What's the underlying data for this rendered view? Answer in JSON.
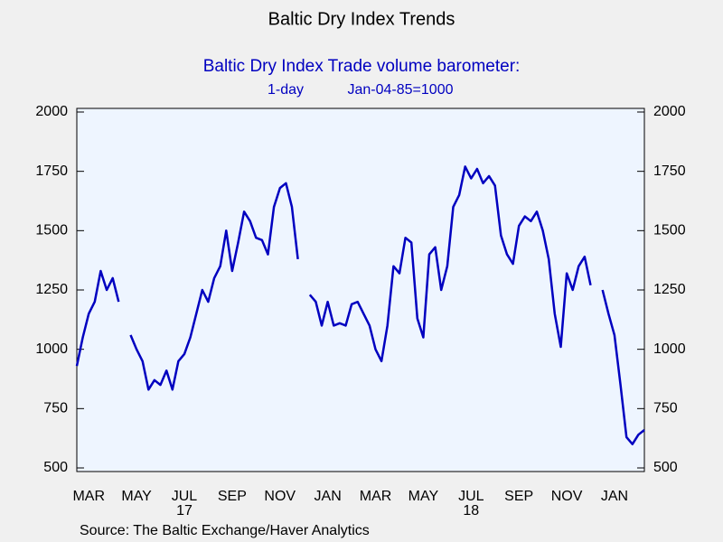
{
  "chart_data": {
    "type": "line",
    "title": "Baltic Dry Index Trends",
    "subtitle": "Baltic Dry Index Trade volume barometer:",
    "series_label": "1-day",
    "base_note": "Jan-04-85=1000",
    "source": "Source:  The Baltic Exchange/Haver Analytics",
    "categories": [
      null,
      null,
      "MAR",
      null,
      null,
      null,
      null,
      null,
      null,
      null,
      "MAY",
      null,
      null,
      null,
      null,
      null,
      null,
      null,
      "JUL",
      null,
      null,
      null,
      null,
      null,
      null,
      null,
      "SEP",
      null,
      null,
      null,
      null,
      null,
      null,
      null,
      "NOV",
      null,
      null,
      null,
      null,
      null,
      null,
      null,
      "JAN",
      null,
      null,
      null,
      null,
      null,
      null,
      null,
      "MAR",
      null,
      null,
      null,
      null,
      null,
      null,
      null,
      "MAY",
      null,
      null,
      null,
      null,
      null,
      null,
      null,
      "JUL",
      null,
      null,
      null,
      null,
      null,
      null,
      null,
      "SEP",
      null,
      null,
      null,
      null,
      null,
      null,
      null,
      "NOV",
      null,
      null,
      null,
      null,
      null,
      null,
      null,
      "JAN",
      null,
      null,
      null,
      null,
      null
    ],
    "year_labels": [
      null,
      null,
      null,
      null,
      null,
      null,
      null,
      null,
      null,
      null,
      null,
      null,
      null,
      null,
      null,
      null,
      null,
      null,
      "17",
      null,
      null,
      null,
      null,
      null,
      null,
      null,
      null,
      null,
      null,
      null,
      null,
      null,
      null,
      null,
      null,
      null,
      null,
      null,
      null,
      null,
      null,
      null,
      null,
      null,
      null,
      null,
      null,
      null,
      null,
      null,
      null,
      null,
      null,
      null,
      null,
      null,
      null,
      null,
      null,
      null,
      null,
      null,
      null,
      null,
      null,
      null,
      "18",
      null,
      null,
      null,
      null,
      null,
      null,
      null,
      null,
      null,
      null,
      null,
      null,
      null,
      null,
      null,
      null,
      null,
      null,
      null,
      null,
      null,
      null,
      null,
      null,
      null,
      null,
      null,
      null,
      null
    ],
    "series": [
      {
        "name": "1-day",
        "color": "#0000c0",
        "values": [
          930,
          1050,
          1150,
          1200,
          1330,
          1250,
          1300,
          1200,
          null,
          1060,
          1000,
          950,
          830,
          870,
          850,
          910,
          830,
          950,
          980,
          1050,
          1150,
          1250,
          1200,
          1300,
          1350,
          1500,
          1330,
          1450,
          1580,
          1540,
          1470,
          1460,
          1400,
          1600,
          1680,
          1700,
          1600,
          1380,
          null,
          1230,
          1200,
          1100,
          1200,
          1100,
          1110,
          1100,
          1190,
          1200,
          1150,
          1100,
          1000,
          950,
          1100,
          1350,
          1320,
          1470,
          1450,
          1130,
          1050,
          1400,
          1430,
          1250,
          1350,
          1600,
          1650,
          1770,
          1720,
          1760,
          1700,
          1730,
          1690,
          1480,
          1400,
          1360,
          1520,
          1560,
          1540,
          1580,
          1500,
          1380,
          1150,
          1010,
          1320,
          1250,
          1350,
          1390,
          1270,
          null,
          1250,
          1150,
          1060,
          850,
          630,
          600,
          640,
          660
        ]
      }
    ],
    "ylim": [
      500,
      2000
    ],
    "yticks": [
      500,
      750,
      1000,
      1250,
      1500,
      1750,
      2000
    ],
    "y2lim": [
      500,
      2000
    ],
    "y2ticks": [
      500,
      750,
      1000,
      1250,
      1500,
      1750,
      2000
    ]
  }
}
